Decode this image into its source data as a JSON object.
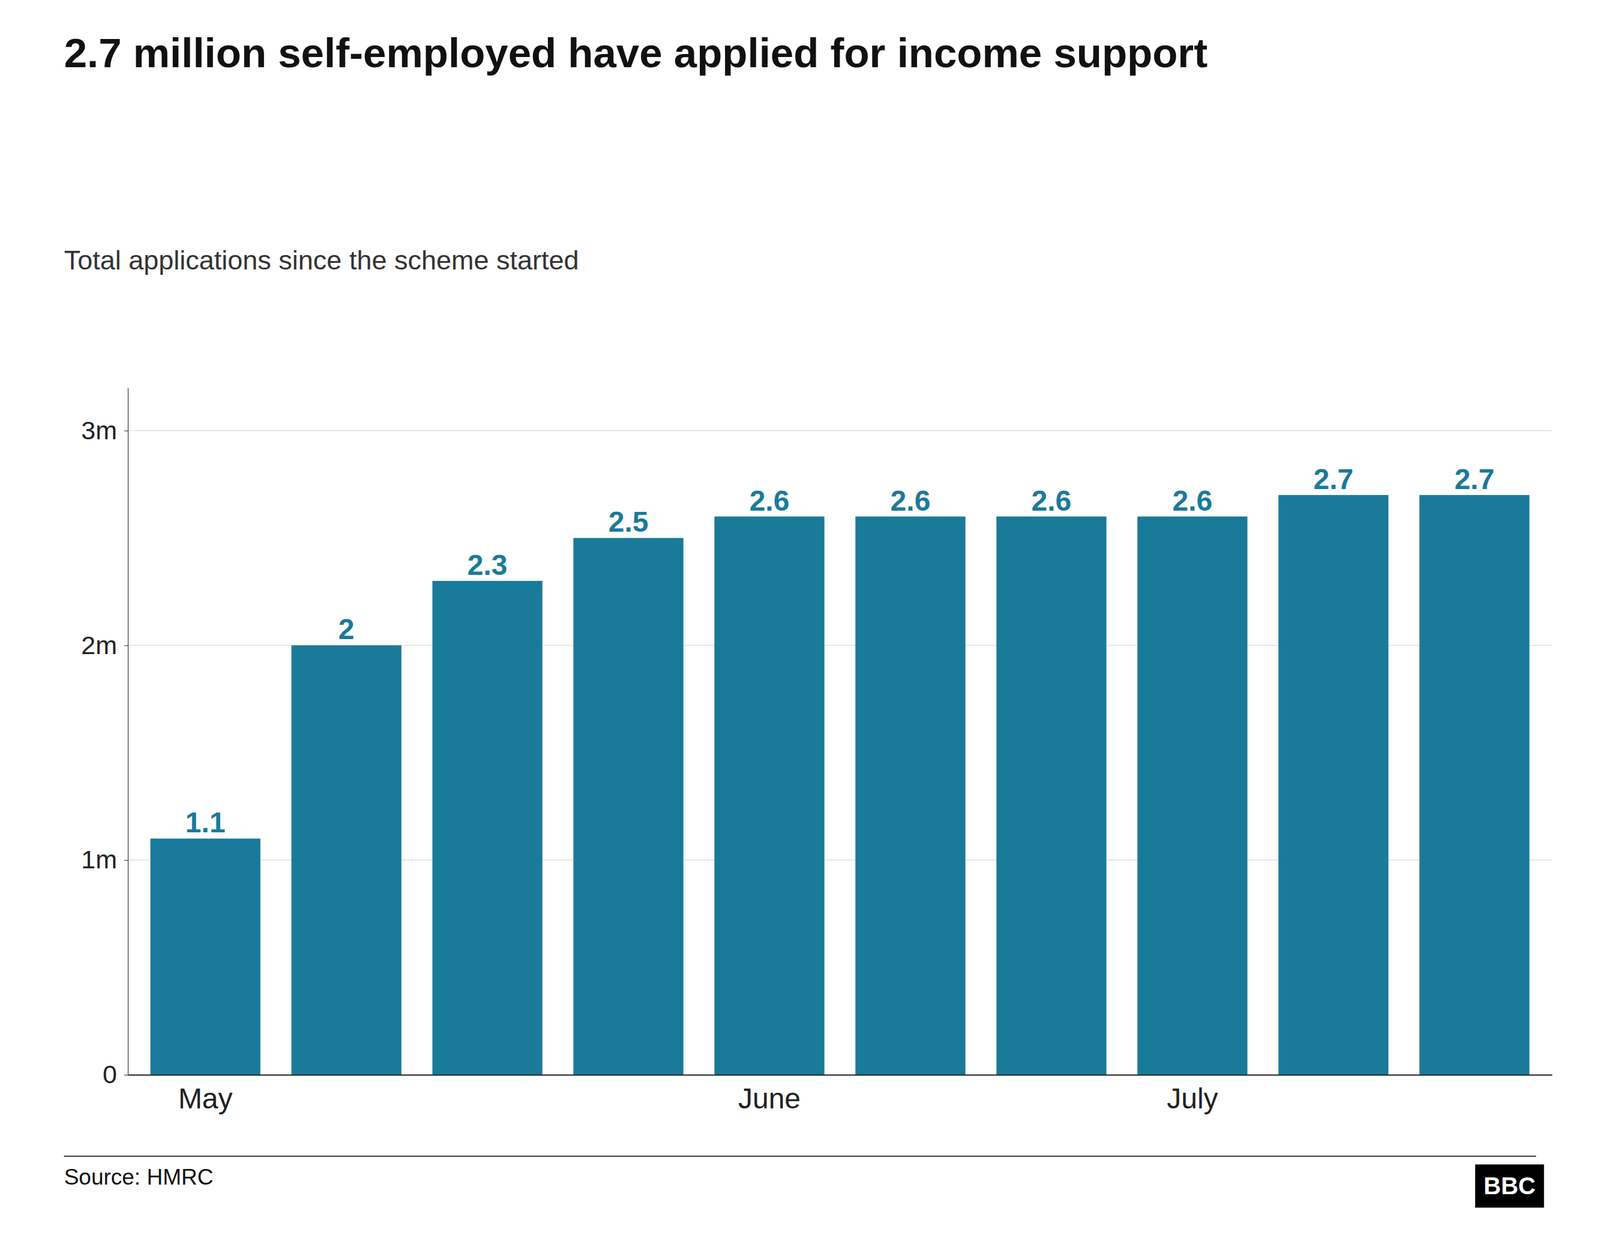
{
  "chart_data": {
    "type": "bar",
    "title": "2.7 million self-employed have applied for income support",
    "subtitle": "Total applications since the scheme started",
    "source": "Source: HMRC",
    "annotations": [
      "BBC"
    ],
    "categories": [
      "May",
      null,
      null,
      null,
      "June",
      null,
      null,
      "July",
      null,
      null
    ],
    "values": [
      1.1,
      2.0,
      2.3,
      2.5,
      2.6,
      2.6,
      2.6,
      2.6,
      2.7,
      2.7
    ],
    "color": "#1a7a9a",
    "data_labels": true,
    "ylim": [
      0,
      3.2
    ],
    "yticks": [
      0,
      {
        "value": 1,
        "label": "1m"
      },
      {
        "value": 2,
        "label": "2m"
      },
      {
        "value": 3,
        "label": "3m"
      }
    ],
    "grid": true
  }
}
